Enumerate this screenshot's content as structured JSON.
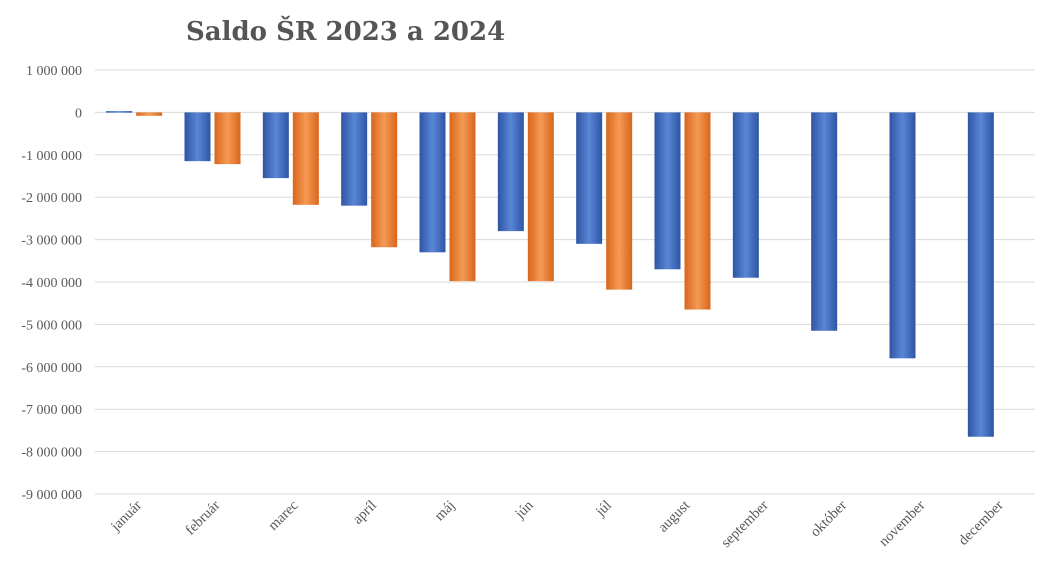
{
  "chart_data": {
    "type": "bar",
    "title": "Saldo ŠR 2023 a 2024",
    "xlabel": "",
    "ylabel": "",
    "ylim": [
      -9000000,
      1000000
    ],
    "y_ticks": [
      1000000,
      0,
      -1000000,
      -2000000,
      -3000000,
      -4000000,
      -5000000,
      -6000000,
      -7000000,
      -8000000,
      -9000000
    ],
    "y_tick_labels": [
      "1 000 000",
      "0",
      "-1 000 000",
      "-2 000 000",
      "-3 000 000",
      "-4 000 000",
      "-5 000 000",
      "-6 000 000",
      "-7 000 000",
      "-8 000 000",
      "-9 000 000"
    ],
    "grid": true,
    "categories": [
      "január",
      "február",
      "marec",
      "apríl",
      "máj",
      "jún",
      "júl",
      "august",
      "september",
      "október",
      "november",
      "december"
    ],
    "series": [
      {
        "color": "#4472c4",
        "values": [
          30000,
          -1150000,
          -1550000,
          -2200000,
          -3300000,
          -2800000,
          -3100000,
          -3700000,
          -3900000,
          -5150000,
          -5800000,
          -7650000
        ]
      },
      {
        "color": "#ed7d31",
        "values": [
          -80000,
          -1220000,
          -2180000,
          -3180000,
          -3980000,
          -3980000,
          -4180000,
          -4650000,
          null,
          null,
          null,
          null
        ]
      }
    ]
  }
}
